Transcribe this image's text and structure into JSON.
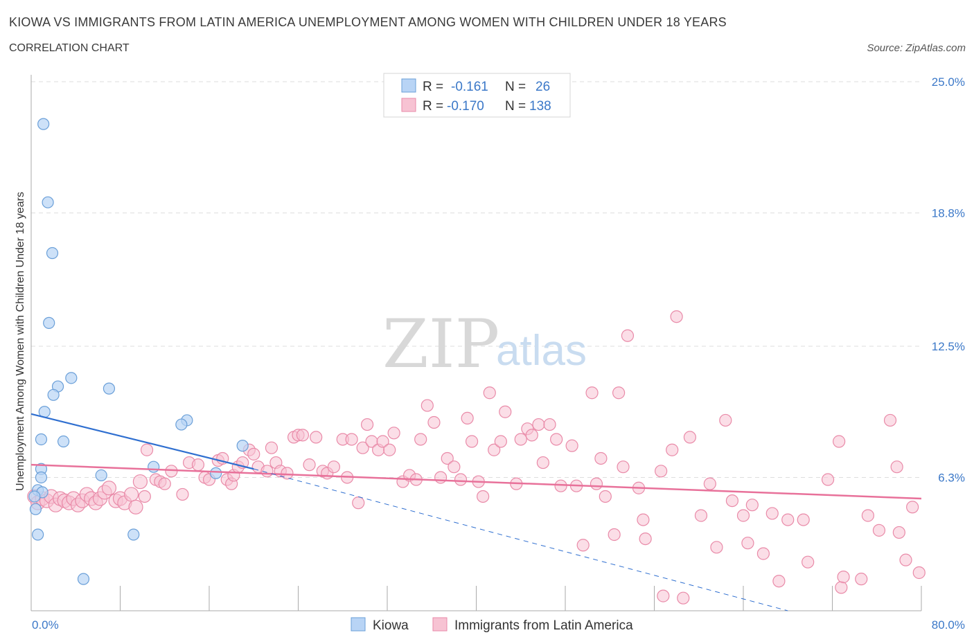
{
  "header": {
    "title": "KIOWA VS IMMIGRANTS FROM LATIN AMERICA UNEMPLOYMENT AMONG WOMEN WITH CHILDREN UNDER 18 YEARS",
    "subtitle": "CORRELATION CHART",
    "source": "Source: ZipAtlas.com"
  },
  "watermark": {
    "zip": "ZIP",
    "atlas": "atlas"
  },
  "colors": {
    "kiowa_fill": "#b8d4f5",
    "kiowa_stroke": "#6a9fd8",
    "kiowa_line": "#2f6fd0",
    "latin_fill": "#f7c3d3",
    "latin_stroke": "#e98aa8",
    "latin_line": "#e8719a",
    "grid": "#dddddd",
    "tick_label_blue": "#3b78c8"
  },
  "legend_box": {
    "rows": [
      {
        "r_label": "R =",
        "r_value": "-0.161",
        "n_label": "N =",
        "n_value": "26"
      },
      {
        "r_label": "R =",
        "r_value": "-0.170",
        "n_label": "N =",
        "n_value": "138"
      }
    ]
  },
  "chart_data": {
    "type": "scatter",
    "title": "KIOWA VS IMMIGRANTS FROM LATIN AMERICA UNEMPLOYMENT AMONG WOMEN WITH CHILDREN UNDER 18 YEARS",
    "xlabel": "",
    "ylabel": "Unemployment Among Women with Children Under 18 years",
    "xlim": [
      0,
      80
    ],
    "ylim": [
      0,
      25
    ],
    "x_tick_labels": [
      "0.0%",
      "80.0%"
    ],
    "y_ticks": [
      6.3,
      12.5,
      18.8,
      25.0
    ],
    "y_tick_labels": [
      "6.3%",
      "12.5%",
      "18.8%",
      "25.0%"
    ],
    "grid": true,
    "legend_placement": "top-center and bottom",
    "series": [
      {
        "name": "Kiowa",
        "r": -0.161,
        "n": 26,
        "trend": {
          "x": [
            0,
            20
          ],
          "y": [
            9.3,
            6.7
          ]
        },
        "trend_extension": {
          "x": [
            20,
            68
          ],
          "y": [
            6.7,
            0
          ]
        },
        "points": [
          [
            1.1,
            23.0
          ],
          [
            1.5,
            19.3
          ],
          [
            1.9,
            16.9
          ],
          [
            1.6,
            13.6
          ],
          [
            2.4,
            10.6
          ],
          [
            3.6,
            11.0
          ],
          [
            2.0,
            10.2
          ],
          [
            1.2,
            9.4
          ],
          [
            7.0,
            10.5
          ],
          [
            14.0,
            9.0
          ],
          [
            13.5,
            8.8
          ],
          [
            0.9,
            8.1
          ],
          [
            2.9,
            8.0
          ],
          [
            19.0,
            7.8
          ],
          [
            11.0,
            6.8
          ],
          [
            0.9,
            6.7
          ],
          [
            0.9,
            6.3
          ],
          [
            6.3,
            6.4
          ],
          [
            16.6,
            6.5
          ],
          [
            0.6,
            5.7
          ],
          [
            1.0,
            5.6
          ],
          [
            0.3,
            5.4
          ],
          [
            0.4,
            4.8
          ],
          [
            0.6,
            3.6
          ],
          [
            9.2,
            3.6
          ],
          [
            4.7,
            1.5
          ]
        ]
      },
      {
        "name": "Immigrants from Latin America",
        "r": -0.17,
        "n": 138,
        "trend": {
          "x": [
            0,
            80
          ],
          "y": [
            6.9,
            5.3
          ]
        },
        "points": [
          [
            0.3,
            5.4
          ],
          [
            0.6,
            5.1
          ],
          [
            1.0,
            5.3
          ],
          [
            1.4,
            5.2
          ],
          [
            1.8,
            5.4
          ],
          [
            2.2,
            5.0
          ],
          [
            2.6,
            5.3
          ],
          [
            3.0,
            5.2
          ],
          [
            3.4,
            5.1
          ],
          [
            3.8,
            5.3
          ],
          [
            4.2,
            5.0
          ],
          [
            4.6,
            5.2
          ],
          [
            5.0,
            5.5
          ],
          [
            5.4,
            5.3
          ],
          [
            5.8,
            5.1
          ],
          [
            6.2,
            5.3
          ],
          [
            6.6,
            5.6
          ],
          [
            7.0,
            5.8
          ],
          [
            7.6,
            5.2
          ],
          [
            8.0,
            5.3
          ],
          [
            8.4,
            5.1
          ],
          [
            9.0,
            5.5
          ],
          [
            9.4,
            4.9
          ],
          [
            9.8,
            6.1
          ],
          [
            10.2,
            5.4
          ],
          [
            10.4,
            7.6
          ],
          [
            11.2,
            6.2
          ],
          [
            11.6,
            6.1
          ],
          [
            12.0,
            6.0
          ],
          [
            12.6,
            6.6
          ],
          [
            13.6,
            5.5
          ],
          [
            14.2,
            7.0
          ],
          [
            15.0,
            6.9
          ],
          [
            15.6,
            6.3
          ],
          [
            16.0,
            6.2
          ],
          [
            16.8,
            7.1
          ],
          [
            17.2,
            7.2
          ],
          [
            17.6,
            6.2
          ],
          [
            18.0,
            6.0
          ],
          [
            18.2,
            6.4
          ],
          [
            18.6,
            6.8
          ],
          [
            19.0,
            7.0
          ],
          [
            19.6,
            7.6
          ],
          [
            20.0,
            7.4
          ],
          [
            20.4,
            6.8
          ],
          [
            21.2,
            6.6
          ],
          [
            21.6,
            7.7
          ],
          [
            22.0,
            7.0
          ],
          [
            22.4,
            6.6
          ],
          [
            23.0,
            6.5
          ],
          [
            23.6,
            8.2
          ],
          [
            24.0,
            8.3
          ],
          [
            24.4,
            8.3
          ],
          [
            25.0,
            6.9
          ],
          [
            25.6,
            8.2
          ],
          [
            26.2,
            6.6
          ],
          [
            26.6,
            6.5
          ],
          [
            27.2,
            6.8
          ],
          [
            28.0,
            8.1
          ],
          [
            28.4,
            6.3
          ],
          [
            28.8,
            8.1
          ],
          [
            29.4,
            5.1
          ],
          [
            29.8,
            7.7
          ],
          [
            30.2,
            8.8
          ],
          [
            30.6,
            8.0
          ],
          [
            31.2,
            7.6
          ],
          [
            31.6,
            8.0
          ],
          [
            32.2,
            7.6
          ],
          [
            32.6,
            8.4
          ],
          [
            33.4,
            6.1
          ],
          [
            34.0,
            6.4
          ],
          [
            34.6,
            6.2
          ],
          [
            35.0,
            8.1
          ],
          [
            35.6,
            9.7
          ],
          [
            36.2,
            8.9
          ],
          [
            36.8,
            6.3
          ],
          [
            37.4,
            7.2
          ],
          [
            38.0,
            6.8
          ],
          [
            38.6,
            6.2
          ],
          [
            39.2,
            9.1
          ],
          [
            39.6,
            8.0
          ],
          [
            40.2,
            6.1
          ],
          [
            40.6,
            5.4
          ],
          [
            41.2,
            10.3
          ],
          [
            41.6,
            7.6
          ],
          [
            42.2,
            8.0
          ],
          [
            42.6,
            9.4
          ],
          [
            43.6,
            6.0
          ],
          [
            44.0,
            8.1
          ],
          [
            44.6,
            8.6
          ],
          [
            45.0,
            8.3
          ],
          [
            45.6,
            8.8
          ],
          [
            46.0,
            7.0
          ],
          [
            46.6,
            8.8
          ],
          [
            47.2,
            8.1
          ],
          [
            47.6,
            5.9
          ],
          [
            48.6,
            7.8
          ],
          [
            49.0,
            5.9
          ],
          [
            49.6,
            3.1
          ],
          [
            50.4,
            10.3
          ],
          [
            50.8,
            6.0
          ],
          [
            51.2,
            7.2
          ],
          [
            51.6,
            5.4
          ],
          [
            52.4,
            3.6
          ],
          [
            52.8,
            10.3
          ],
          [
            53.2,
            6.8
          ],
          [
            53.6,
            13.0
          ],
          [
            54.6,
            5.8
          ],
          [
            55.0,
            4.3
          ],
          [
            55.2,
            3.4
          ],
          [
            56.6,
            6.6
          ],
          [
            56.8,
            0.7
          ],
          [
            57.6,
            7.6
          ],
          [
            58.0,
            13.9
          ],
          [
            58.6,
            0.6
          ],
          [
            59.2,
            8.2
          ],
          [
            60.2,
            4.5
          ],
          [
            61.0,
            6.0
          ],
          [
            61.6,
            3.0
          ],
          [
            62.4,
            9.0
          ],
          [
            63.0,
            5.2
          ],
          [
            64.0,
            4.5
          ],
          [
            64.4,
            3.2
          ],
          [
            64.8,
            5.0
          ],
          [
            65.8,
            2.7
          ],
          [
            66.6,
            4.6
          ],
          [
            67.2,
            1.4
          ],
          [
            68.0,
            4.3
          ],
          [
            69.4,
            4.3
          ],
          [
            69.8,
            2.3
          ],
          [
            71.6,
            6.2
          ],
          [
            72.6,
            8.0
          ],
          [
            72.8,
            1.1
          ],
          [
            73.0,
            1.6
          ],
          [
            74.6,
            1.5
          ],
          [
            75.2,
            4.5
          ],
          [
            76.2,
            3.8
          ],
          [
            77.2,
            9.0
          ],
          [
            77.8,
            6.8
          ],
          [
            78.0,
            3.7
          ],
          [
            78.6,
            2.4
          ],
          [
            79.2,
            4.9
          ],
          [
            79.8,
            1.8
          ]
        ]
      }
    ]
  },
  "bottom_legend": {
    "items": [
      {
        "label": "Kiowa"
      },
      {
        "label": "Immigrants from Latin America"
      }
    ]
  }
}
